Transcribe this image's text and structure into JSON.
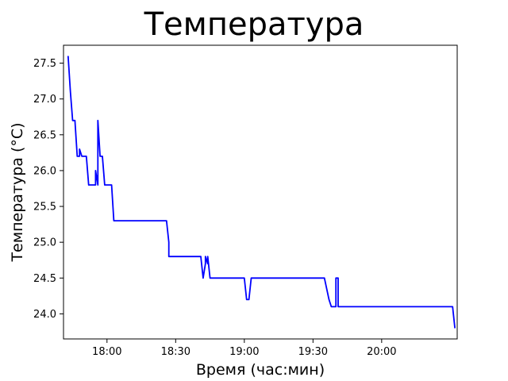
{
  "chart_data": {
    "type": "line",
    "title": "Температура",
    "xlabel": "Время (час:мин)",
    "ylabel": "Температура (°C)",
    "x_unit": "HH:MM",
    "xlim": [
      "17:41",
      "20:33"
    ],
    "ylim": [
      23.65,
      27.75
    ],
    "x_ticks": [
      "18:00",
      "18:30",
      "19:00",
      "19:30",
      "20:00"
    ],
    "y_ticks": [
      24.0,
      24.5,
      25.0,
      25.5,
      26.0,
      26.5,
      27.0,
      27.5
    ],
    "y_tick_labels": [
      "24.0",
      "24.5",
      "25.0",
      "25.5",
      "26.0",
      "26.5",
      "27.0",
      "27.5"
    ],
    "grid": false,
    "colors": {
      "line": "#0000ff"
    },
    "series": [
      {
        "x": [
          "17:43",
          "17:43",
          "17:44",
          "17:44",
          "17:45",
          "17:46",
          "17:46",
          "17:47",
          "17:48",
          "17:48",
          "17:49",
          "17:49",
          "17:50",
          "17:51",
          "17:52",
          "17:53",
          "17:54",
          "17:55",
          "17:55",
          "17:56",
          "17:56",
          "17:57",
          "17:58",
          "17:58",
          "17:59",
          "18:00",
          "18:00",
          "18:00",
          "18:01",
          "18:01",
          "18:02",
          "18:03",
          "18:03",
          "18:04",
          "18:05",
          "18:07",
          "18:08",
          "18:08",
          "18:08",
          "18:09",
          "18:10",
          "18:26",
          "18:27",
          "18:27",
          "18:28",
          "18:28",
          "18:29",
          "18:30",
          "18:31",
          "18:32",
          "18:41",
          "18:42",
          "18:43",
          "18:43",
          "18:44",
          "18:44",
          "18:45",
          "18:45",
          "18:45",
          "18:46",
          "18:46",
          "18:47",
          "18:47",
          "18:48",
          "18:49",
          "18:58",
          "18:59",
          "19:00",
          "19:00",
          "19:01",
          "19:02",
          "19:03",
          "19:04",
          "19:05",
          "19:05",
          "19:06",
          "19:06",
          "19:07",
          "19:08",
          "19:09",
          "19:35",
          "19:37",
          "19:38",
          "19:38",
          "19:39",
          "19:40",
          "19:40",
          "19:41",
          "19:41",
          "19:42",
          "19:42",
          "19:42",
          "19:43",
          "19:55",
          "20:04",
          "20:09",
          "20:10",
          "20:11",
          "20:12",
          "20:13",
          "20:14",
          "20:15",
          "20:16",
          "20:17",
          "20:18",
          "20:19",
          "20:20",
          "20:21",
          "20:22",
          "20:23",
          "20:24",
          "20:25",
          "20:26",
          "20:27",
          "20:28",
          "20:29",
          "20:30",
          "20:31",
          "20:32"
        ],
        "y": [
          27.6,
          27.6,
          27.1,
          27.1,
          26.7,
          26.7,
          26.7,
          26.2,
          26.2,
          26.3,
          26.2,
          26.2,
          26.2,
          26.2,
          25.8,
          25.8,
          25.8,
          25.8,
          26.0,
          25.8,
          26.7,
          26.2,
          26.2,
          26.2,
          25.8,
          25.8,
          25.8,
          25.8,
          25.8,
          25.8,
          25.8,
          25.3,
          25.3,
          25.3,
          25.3,
          25.3,
          25.3,
          25.3,
          25.3,
          25.3,
          25.3,
          25.3,
          25.0,
          24.8,
          24.8,
          24.8,
          24.8,
          24.8,
          24.8,
          24.8,
          24.8,
          24.5,
          24.7,
          24.8,
          24.7,
          24.8,
          24.5,
          24.5,
          24.5,
          24.5,
          24.5,
          24.5,
          24.5,
          24.5,
          24.5,
          24.5,
          24.5,
          24.5,
          24.5,
          24.2,
          24.2,
          24.5,
          24.5,
          24.5,
          24.5,
          24.5,
          24.5,
          24.5,
          24.5,
          24.5,
          24.5,
          24.2,
          24.1,
          24.1,
          24.1,
          24.1,
          24.5,
          24.5,
          24.1,
          24.1,
          24.1,
          24.1,
          24.1,
          24.1,
          24.1,
          24.1,
          24.1,
          24.1,
          24.1,
          24.1,
          24.1,
          24.1,
          24.1,
          24.1,
          24.1,
          24.1,
          24.1,
          24.1,
          24.1,
          24.1,
          24.1,
          24.1,
          24.1,
          24.1,
          24.1,
          24.1,
          24.1,
          24.1,
          23.8
        ]
      }
    ]
  }
}
